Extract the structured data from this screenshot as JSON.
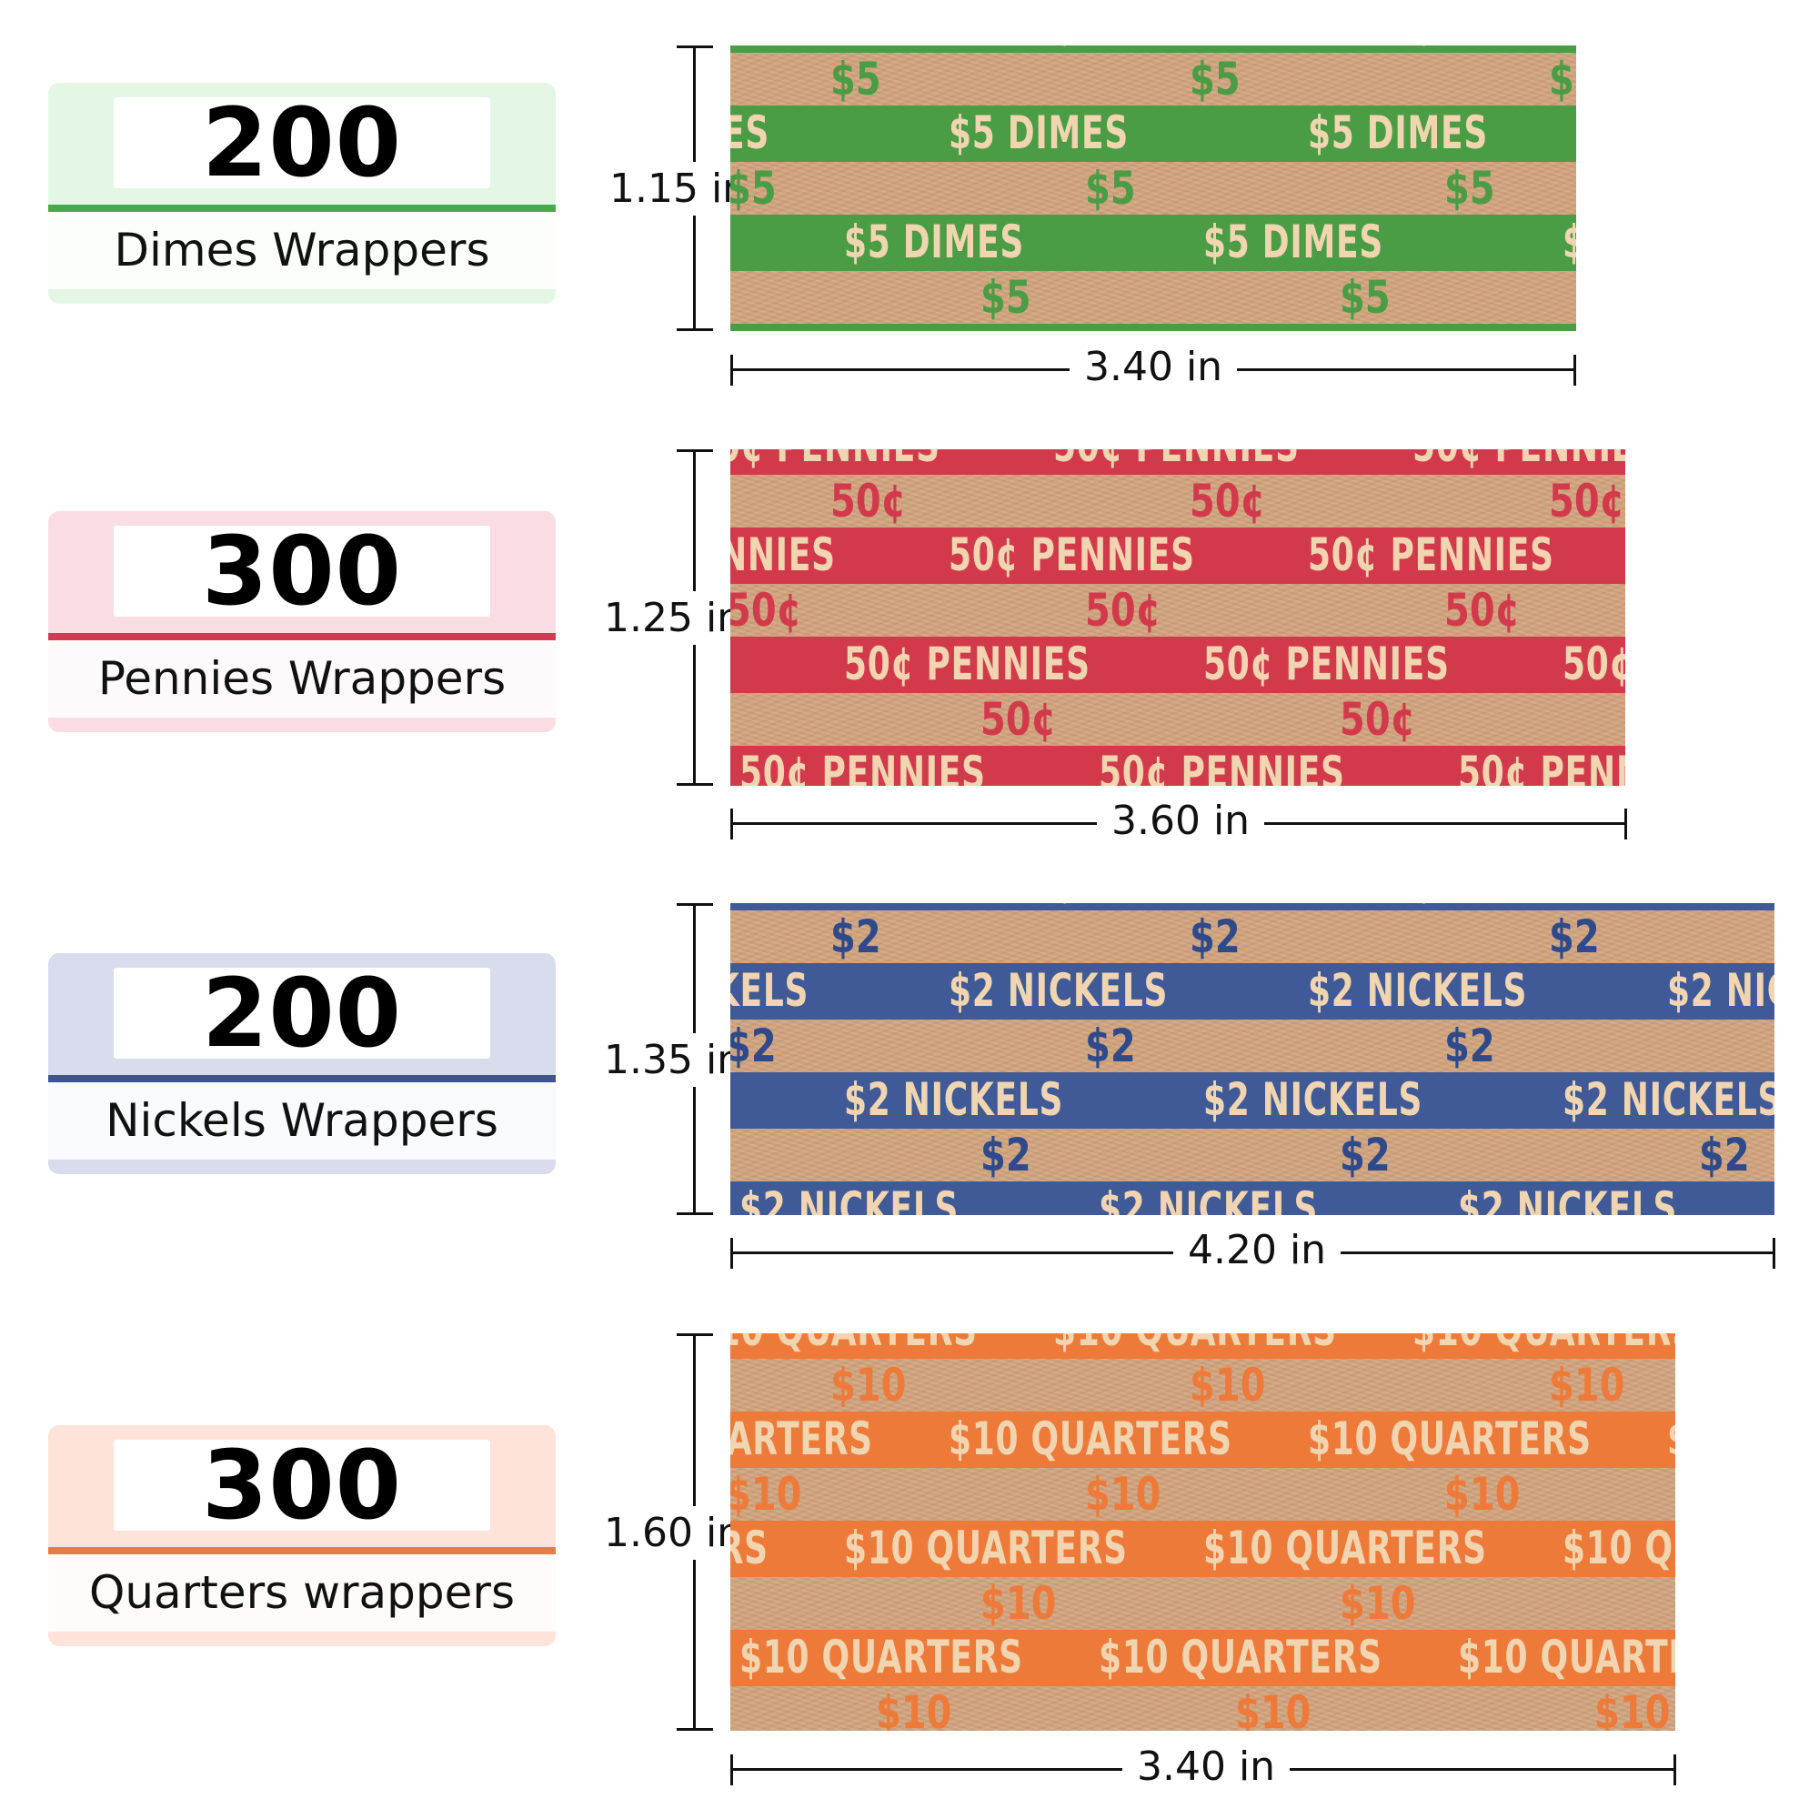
{
  "items": [
    {
      "count": "200",
      "label": "Dimes Wrappers",
      "height_label": "1.15 in",
      "width_label": "3.40 in",
      "band_text": "$5 DIMES",
      "value_text": "$5",
      "colors": {
        "card_bg": "#e3f7e4",
        "divider": "#48a84c",
        "band": "#4a9c45",
        "text_on_band": "#f0d5b0",
        "text_on_kraft": "#4a9c45"
      }
    },
    {
      "count": "300",
      "label": "Pennies Wrappers",
      "height_label": "1.25 in",
      "width_label": "3.60 in",
      "band_text": "50¢ PENNIES",
      "value_text": "50¢",
      "colors": {
        "card_bg": "#f9dde3",
        "divider": "#cf3d55",
        "band": "#d23a4c",
        "text_on_band": "#f0d5b0",
        "text_on_kraft": "#d23a4c"
      }
    },
    {
      "count": "200",
      "label": "Nickels Wrappers",
      "height_label": "1.35 in",
      "width_label": "4.20 in",
      "band_text": "$2 NICKELS",
      "value_text": "$2",
      "colors": {
        "card_bg": "#d8dced",
        "divider": "#3d5395",
        "band": "#3f5a96",
        "text_on_band": "#f0d5b0",
        "text_on_kraft": "#2f4a8a"
      }
    },
    {
      "count": "300",
      "label": "Quarters wrappers",
      "height_label": "1.60 in",
      "width_label": "3.40 in",
      "band_text": "$10 QUARTERS",
      "value_text": "$10",
      "colors": {
        "card_bg": "#fde3da",
        "divider": "#ea7a45",
        "band": "#ee7a3a",
        "text_on_band": "#f0d5b0",
        "text_on_kraft": "#ee7a3a"
      }
    }
  ]
}
